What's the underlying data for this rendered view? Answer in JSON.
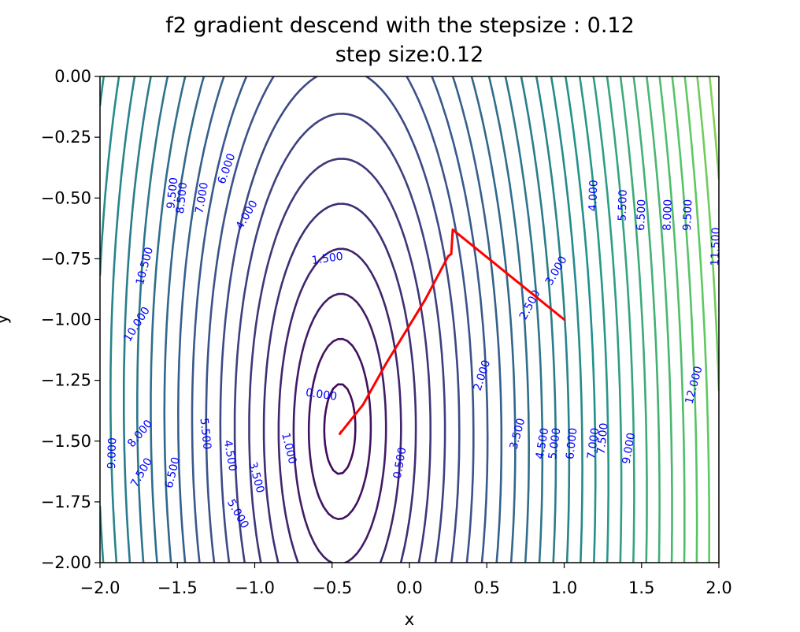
{
  "chart_data": {
    "type": "contour",
    "title": "f2 gradient descend with the stepsize : 0.12",
    "subtitle": "step size:0.12",
    "xlabel": "x",
    "ylabel": "y",
    "xlim": [
      -2.0,
      2.0
    ],
    "ylim": [
      -2.0,
      0.0
    ],
    "x_ticks": [
      "−2.0",
      "−1.5",
      "−1.0",
      "−0.5",
      "0.0",
      "0.5",
      "1.0",
      "1.5",
      "2.0"
    ],
    "y_ticks": [
      "0.00",
      "−0.25",
      "−0.50",
      "−0.75",
      "−1.00",
      "−1.25",
      "−1.50",
      "−1.75",
      "−2.00"
    ],
    "colormap": [
      "#440154",
      "#3b528b",
      "#21918c",
      "#5ec962",
      "#fde725"
    ],
    "contour_levels": [
      0.0,
      0.5,
      1.0,
      1.5,
      2.0,
      2.5,
      3.0,
      3.5,
      4.0,
      4.5,
      5.0,
      5.5,
      6.0,
      6.5,
      7.0,
      7.5,
      8.0,
      8.5,
      9.0,
      9.5,
      10.0,
      10.5,
      11.0,
      11.5,
      12.0
    ],
    "contour_labels": [
      {
        "text": "0.000",
        "x": -0.57,
        "y": -1.31,
        "rot": 8
      },
      {
        "text": "0.500",
        "x": -0.06,
        "y": -1.59,
        "rot": -80
      },
      {
        "text": "1.000",
        "x": -0.78,
        "y": -1.53,
        "rot": 76
      },
      {
        "text": "1.500",
        "x": -0.53,
        "y": -0.75,
        "rot": -8
      },
      {
        "text": "2.000",
        "x": 0.47,
        "y": -1.23,
        "rot": -72
      },
      {
        "text": "2.500",
        "x": 0.78,
        "y": -0.94,
        "rot": -62
      },
      {
        "text": "3.000",
        "x": 0.95,
        "y": -0.8,
        "rot": -60
      },
      {
        "text": "3.500",
        "x": 0.7,
        "y": -1.47,
        "rot": -75
      },
      {
        "text": "3.500",
        "x": -0.99,
        "y": -1.65,
        "rot": 75
      },
      {
        "text": "4.000",
        "x": -1.05,
        "y": -0.57,
        "rot": -60
      },
      {
        "text": "4.000",
        "x": 1.19,
        "y": -0.49,
        "rot": -88
      },
      {
        "text": "4.500",
        "x": 0.86,
        "y": -1.51,
        "rot": -80
      },
      {
        "text": "4.500",
        "x": -1.16,
        "y": -1.56,
        "rot": 80
      },
      {
        "text": "5.000",
        "x": 0.94,
        "y": -1.51,
        "rot": -82
      },
      {
        "text": "5.000",
        "x": -1.11,
        "y": -1.8,
        "rot": 60
      },
      {
        "text": "5.500",
        "x": -1.32,
        "y": -1.47,
        "rot": 84
      },
      {
        "text": "5.500",
        "x": 1.38,
        "y": -0.53,
        "rot": -88
      },
      {
        "text": "6.000",
        "x": 1.05,
        "y": -1.51,
        "rot": -84
      },
      {
        "text": "6.000",
        "x": -1.18,
        "y": -0.38,
        "rot": -70
      },
      {
        "text": "6.500",
        "x": 1.5,
        "y": -0.57,
        "rot": -88
      },
      {
        "text": "6.500",
        "x": -1.53,
        "y": -1.63,
        "rot": -76
      },
      {
        "text": "7.000",
        "x": 1.19,
        "y": -1.51,
        "rot": -82
      },
      {
        "text": "7.000",
        "x": -1.34,
        "y": -0.5,
        "rot": -80
      },
      {
        "text": "7.500",
        "x": 1.25,
        "y": -1.49,
        "rot": -84
      },
      {
        "text": "7.500",
        "x": -1.73,
        "y": -1.63,
        "rot": -60
      },
      {
        "text": "8.000",
        "x": -1.74,
        "y": -1.47,
        "rot": -50
      },
      {
        "text": "8.000",
        "x": 1.67,
        "y": -0.57,
        "rot": -88
      },
      {
        "text": "8.500",
        "x": -1.47,
        "y": -0.5,
        "rot": -84
      },
      {
        "text": "9.000",
        "x": -1.92,
        "y": -1.55,
        "rot": -88
      },
      {
        "text": "9.000",
        "x": 1.42,
        "y": -1.53,
        "rot": -80
      },
      {
        "text": "9.500",
        "x": -1.53,
        "y": -0.48,
        "rot": -84
      },
      {
        "text": "9.500",
        "x": 1.8,
        "y": -0.57,
        "rot": -88
      },
      {
        "text": "10.000",
        "x": -1.76,
        "y": -1.02,
        "rot": -58
      },
      {
        "text": "10.500",
        "x": -1.71,
        "y": -0.78,
        "rot": -75
      },
      {
        "text": "11.500",
        "x": 1.98,
        "y": -0.7,
        "rot": -88
      },
      {
        "text": "12.000",
        "x": 1.84,
        "y": -1.27,
        "rot": -75
      }
    ],
    "path_color": "#ff0000",
    "path": [
      {
        "x": 1.0,
        "y": -1.0
      },
      {
        "x": 0.28,
        "y": -0.63
      },
      {
        "x": 0.27,
        "y": -0.73
      },
      {
        "x": 0.25,
        "y": -0.74
      },
      {
        "x": 0.1,
        "y": -0.92
      },
      {
        "x": -0.15,
        "y": -1.18
      },
      {
        "x": -0.3,
        "y": -1.35
      },
      {
        "x": -0.4,
        "y": -1.43
      },
      {
        "x": -0.45,
        "y": -1.47
      },
      {
        "x": -0.44,
        "y": -1.46
      }
    ]
  }
}
